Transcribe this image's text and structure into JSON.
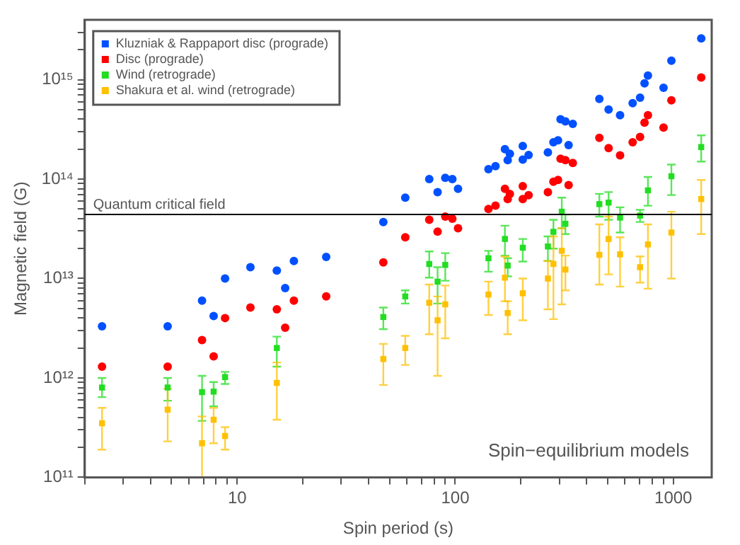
{
  "chart_data": {
    "type": "scatter",
    "xlabel": "Spin period (s)",
    "ylabel": "Magnetic field (G)",
    "log": "xy",
    "grid": false,
    "legend": "top left",
    "xlim": [
      2,
      1500
    ],
    "ylim": [
      100000000000.0,
      4000000000000000.0
    ],
    "xticks": [
      {
        "value": 2,
        "label": null
      },
      {
        "value": 3,
        "label": null
      },
      {
        "value": 4,
        "label": null
      },
      {
        "value": 5,
        "label": null
      },
      {
        "value": 6,
        "label": null
      },
      {
        "value": 7,
        "label": null
      },
      {
        "value": 8,
        "label": null
      },
      {
        "value": 9,
        "label": null
      },
      10,
      {
        "value": 20,
        "label": null
      },
      {
        "value": 30,
        "label": null
      },
      {
        "value": 40,
        "label": null
      },
      {
        "value": 50,
        "label": null
      },
      {
        "value": 60,
        "label": null
      },
      {
        "value": 70,
        "label": null
      },
      {
        "value": 80,
        "label": null
      },
      {
        "value": 90,
        "label": null
      },
      100,
      {
        "value": 200,
        "label": null
      },
      {
        "value": 300,
        "label": null
      },
      {
        "value": 400,
        "label": null
      },
      {
        "value": 500,
        "label": null
      },
      {
        "value": 600,
        "label": null
      },
      {
        "value": 700,
        "label": null
      },
      {
        "value": 800,
        "label": null
      },
      {
        "value": 900,
        "label": null
      },
      1000
    ],
    "yticks": [
      {
        "value": 100000000000.0,
        "label": "10¹¹"
      },
      {
        "value": 200000000000.0,
        "label": null
      },
      {
        "value": 300000000000.0,
        "label": null
      },
      {
        "value": 400000000000.0,
        "label": null
      },
      {
        "value": 500000000000.0,
        "label": null
      },
      {
        "value": 600000000000.0,
        "label": null
      },
      {
        "value": 700000000000.0,
        "label": null
      },
      {
        "value": 800000000000.0,
        "label": null
      },
      {
        "value": 900000000000.0,
        "label": null
      },
      {
        "value": 1000000000000.0,
        "label": "10¹²"
      },
      {
        "value": 2000000000000.0,
        "label": null
      },
      {
        "value": 3000000000000.0,
        "label": null
      },
      {
        "value": 4000000000000.0,
        "label": null
      },
      {
        "value": 5000000000000.0,
        "label": null
      },
      {
        "value": 6000000000000.0,
        "label": null
      },
      {
        "value": 7000000000000.0,
        "label": null
      },
      {
        "value": 8000000000000.0,
        "label": null
      },
      {
        "value": 9000000000000.0,
        "label": null
      },
      {
        "value": 10000000000000.0,
        "label": "10¹³"
      },
      {
        "value": 20000000000000.0,
        "label": null
      },
      {
        "value": 30000000000000.0,
        "label": null
      },
      {
        "value": 40000000000000.0,
        "label": null
      },
      {
        "value": 50000000000000.0,
        "label": null
      },
      {
        "value": 60000000000000.0,
        "label": null
      },
      {
        "value": 70000000000000.0,
        "label": null
      },
      {
        "value": 80000000000000.0,
        "label": null
      },
      {
        "value": 90000000000000.0,
        "label": null
      },
      {
        "value": 100000000000000.0,
        "label": "10¹⁴"
      },
      {
        "value": 200000000000000.0,
        "label": null
      },
      {
        "value": 300000000000000.0,
        "label": null
      },
      {
        "value": 400000000000000.0,
        "label": null
      },
      {
        "value": 500000000000000.0,
        "label": null
      },
      {
        "value": 600000000000000.0,
        "label": null
      },
      {
        "value": 700000000000000.0,
        "label": null
      },
      {
        "value": 800000000000000.0,
        "label": null
      },
      {
        "value": 900000000000000.0,
        "label": null
      },
      {
        "value": 1000000000000000.0,
        "label": "10¹⁵"
      },
      {
        "value": 2000000000000000.0,
        "label": null
      },
      {
        "value": 3000000000000000.0,
        "label": null
      }
    ],
    "ref_lines": [
      {
        "axis": "y",
        "value": 44000000000000.0,
        "label": "Quantum critical field",
        "color": "#000000"
      }
    ],
    "annotations": [
      "Spin−equilibrium models"
    ],
    "series": [
      {
        "name": "Kluzniak & Rappaport disc (prograde)",
        "color": "#0050ff",
        "marker": "circle",
        "x": [
          2.4,
          4.8,
          6.9,
          7.8,
          8.8,
          11.5,
          15.2,
          16.6,
          18.2,
          25.6,
          46.8,
          59,
          76,
          83,
          90,
          97,
          103,
          142,
          153,
          169,
          174,
          178,
          204,
          204,
          217,
          266,
          282,
          296,
          304,
          320,
          331,
          346,
          458,
          505,
          570,
          651,
          704,
          738,
          765,
          902,
          980,
          1343
        ],
        "values": [
          3300000000000.0,
          3300000000000.0,
          6000000000000.0,
          4200000000000.0,
          10000000000000.0,
          13000000000000.0,
          12000000000000.0,
          8000000000000.0,
          15000000000000.0,
          16500000000000.0,
          37000000000000.0,
          65000000000000.0,
          100000000000000.0,
          74000000000000.0,
          103000000000000.0,
          100000000000000.0,
          80000000000000.0,
          126000000000000.0,
          135000000000000.0,
          200000000000000.0,
          155000000000000.0,
          180000000000000.0,
          215000000000000.0,
          157000000000000.0,
          175000000000000.0,
          186000000000000.0,
          235000000000000.0,
          245000000000000.0,
          400000000000000.0,
          380000000000000.0,
          220000000000000.0,
          360000000000000.0,
          640000000000000.0,
          500000000000000.0,
          440000000000000.0,
          580000000000000.0,
          660000000000000.0,
          920000000000000.0,
          1100000000000000.0,
          830000000000000.0,
          1550000000000000.0,
          2600000000000000.0
        ]
      },
      {
        "name": "Disc (prograde)",
        "color": "#ff0000",
        "marker": "circle",
        "x": [
          2.4,
          4.8,
          6.9,
          7.8,
          8.8,
          11.5,
          15.2,
          16.6,
          18.2,
          25.6,
          46.8,
          59,
          76,
          83,
          90,
          97,
          103,
          142,
          153,
          169,
          174,
          178,
          204,
          204,
          217,
          266,
          282,
          296,
          304,
          320,
          331,
          346,
          458,
          505,
          570,
          651,
          704,
          738,
          765,
          902,
          980,
          1343
        ],
        "values": [
          1300000000000.0,
          1300000000000.0,
          2400000000000.0,
          1650000000000.0,
          4000000000000.0,
          5100000000000.0,
          4900000000000.0,
          3200000000000.0,
          6000000000000.0,
          6600000000000.0,
          14500000000000.0,
          26000000000000.0,
          39000000000000.0,
          29600000000000.0,
          42000000000000.0,
          40000000000000.0,
          32000000000000.0,
          50000000000000.0,
          54000000000000.0,
          80000000000000.0,
          63000000000000.0,
          71000000000000.0,
          85000000000000.0,
          63000000000000.0,
          69000000000000.0,
          74000000000000.0,
          94000000000000.0,
          98000000000000.0,
          160000000000000.0,
          155000000000000.0,
          87000000000000.0,
          145000000000000.0,
          260000000000000.0,
          205000000000000.0,
          173000000000000.0,
          235000000000000.0,
          265000000000000.0,
          370000000000000.0,
          440000000000000.0,
          330000000000000.0,
          620000000000000.0,
          1050000000000000.0
        ]
      },
      {
        "name": "Wind (retrograde)",
        "color": "#22dd22",
        "marker": "square",
        "x": [
          2.4,
          4.8,
          6.9,
          7.8,
          8.8,
          15.2,
          46.8,
          59,
          76,
          83,
          90,
          142,
          169,
          174,
          204,
          266,
          282,
          308,
          320,
          458,
          505,
          570,
          704,
          765,
          980,
          1343
        ],
        "values": [
          800000000000.0,
          800000000000.0,
          720000000000.0,
          730000000000.0,
          1020000000000.0,
          2000000000000.0,
          4100000000000.0,
          6600000000000.0,
          14000000000000.0,
          9300000000000.0,
          13700000000000.0,
          16000000000000.0,
          25000000000000.0,
          13500000000000.0,
          20400000000000.0,
          21000000000000.0,
          29500000000000.0,
          47000000000000.0,
          35500000000000.0,
          56000000000000.0,
          58000000000000.0,
          41000000000000.0,
          43000000000000.0,
          77000000000000.0,
          107000000000000.0,
          210000000000000.0
        ],
        "errors": [
          [
            640000000000.0,
            1000000000000.0
          ],
          [
            590000000000.0,
            1000000000000.0
          ],
          [
            370000000000.0,
            1050000000000.0
          ],
          [
            520000000000.0,
            910000000000.0
          ],
          [
            870000000000.0,
            1150000000000.0
          ],
          [
            1300000000000.0,
            2600000000000.0
          ],
          [
            3100000000000.0,
            5100000000000.0
          ],
          [
            5600000000000.0,
            7600000000000.0
          ],
          [
            10200000000000.0,
            18700000000000.0
          ],
          [
            5600000000000.0,
            13000000000000.0
          ],
          [
            9500000000000.0,
            18000000000000.0
          ],
          [
            11700000000000.0,
            19000000000000.0
          ],
          [
            17000000000000.0,
            34000000000000.0
          ],
          [
            10500000000000.0,
            16000000000000.0
          ],
          [
            14800000000000.0,
            25000000000000.0
          ],
          [
            15000000000000.0,
            26500000000000.0
          ],
          [
            20000000000000.0,
            39000000000000.0
          ],
          [
            32000000000000.0,
            65000000000000.0
          ],
          [
            28000000000000.0,
            44000000000000.0
          ],
          [
            42000000000000.0,
            71000000000000.0
          ],
          [
            39000000000000.0,
            74000000000000.0
          ],
          [
            29000000000000.0,
            52000000000000.0
          ],
          [
            37000000000000.0,
            49000000000000.0
          ],
          [
            54000000000000.0,
            105000000000000.0
          ],
          [
            69000000000000.0,
            140000000000000.0
          ],
          [
            150000000000000.0,
            275000000000000.0
          ]
        ]
      },
      {
        "name": "Shakura et al. wind (retrograde)",
        "color": "#ffc000",
        "marker": "square",
        "x": [
          2.4,
          4.8,
          6.9,
          7.8,
          8.8,
          15.2,
          46.8,
          59,
          76,
          83,
          90,
          142,
          169,
          174,
          204,
          266,
          282,
          308,
          320,
          458,
          505,
          570,
          704,
          765,
          980,
          1343
        ],
        "values": [
          350000000000.0,
          480000000000.0,
          220000000000.0,
          380000000000.0,
          260000000000.0,
          890000000000.0,
          1550000000000.0,
          2000000000000.0,
          5700000000000.0,
          3800000000000.0,
          5500000000000.0,
          6900000000000.0,
          10200000000000.0,
          4500000000000.0,
          7100000000000.0,
          10000000000000.0,
          14000000000000.0,
          19000000000000.0,
          12300000000000.0,
          17300000000000.0,
          25000000000000.0,
          17500000000000.0,
          13000000000000.0,
          22000000000000.0,
          29000000000000.0,
          63000000000000.0
        ],
        "errors": [
          [
            190000000000.0,
            500000000000.0
          ],
          [
            230000000000.0,
            780000000000.0
          ],
          [
            100000000000.0,
            410000000000.0
          ],
          [
            220000000000.0,
            500000000000.0
          ],
          [
            190000000000.0,
            320000000000.0
          ],
          [
            380000000000.0,
            1430000000000.0
          ],
          [
            850000000000.0,
            2200000000000.0
          ],
          [
            1350000000000.0,
            2650000000000.0
          ],
          [
            2750000000000.0,
            8700000000000.0
          ],
          [
            1050000000000.0,
            6600000000000.0
          ],
          [
            2500000000000.0,
            8500000000000.0
          ],
          [
            4300000000000.0,
            9300000000000.0
          ],
          [
            5900000000000.0,
            16600000000000.0
          ],
          [
            2750000000000.0,
            5900000000000.0
          ],
          [
            3800000000000.0,
            10000000000000.0
          ],
          [
            4900000000000.0,
            15000000000000.0
          ],
          [
            3900000000000.0,
            26500000000000.0
          ],
          [
            5500000000000.0,
            32000000000000.0
          ],
          [
            7600000000000.0,
            17000000000000.0
          ],
          [
            8700000000000.0,
            35000000000000.0
          ],
          [
            11000000000000.0,
            42000000000000.0
          ],
          [
            8300000000000.0,
            26000000000000.0
          ],
          [
            9100000000000.0,
            16700000000000.0
          ],
          [
            7900000000000.0,
            35000000000000.0
          ],
          [
            10000000000000.0,
            47000000000000.0
          ],
          [
            28000000000000.0,
            98000000000000.0
          ]
        ]
      }
    ]
  }
}
